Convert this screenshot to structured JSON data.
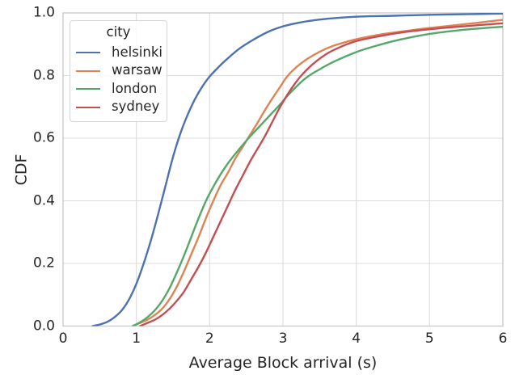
{
  "figure": {
    "background": "#ffffff",
    "text_color": "#262626",
    "grid_color": "#dcdcdc",
    "spine_color": "#c9c9c9"
  },
  "chart_data": {
    "type": "line",
    "variant": "cdf",
    "title": "",
    "xlabel": "Average Block arrival (s)",
    "ylabel": "CDF",
    "xlim": [
      0,
      6
    ],
    "ylim": [
      0.0,
      1.0
    ],
    "x_ticks": [
      {
        "value": 0,
        "label": "0"
      },
      {
        "value": 1,
        "label": "1"
      },
      {
        "value": 2,
        "label": "2"
      },
      {
        "value": 3,
        "label": "3"
      },
      {
        "value": 4,
        "label": "4"
      },
      {
        "value": 5,
        "label": "5"
      },
      {
        "value": 6,
        "label": "6"
      }
    ],
    "y_ticks": [
      {
        "value": 0.0,
        "label": "0.0"
      },
      {
        "value": 0.2,
        "label": "0.2"
      },
      {
        "value": 0.4,
        "label": "0.4"
      },
      {
        "value": 0.6,
        "label": "0.6"
      },
      {
        "value": 0.8,
        "label": "0.8"
      },
      {
        "value": 1.0,
        "label": "1.0"
      }
    ],
    "grid": true,
    "legend": {
      "title": "city",
      "position": "upper left"
    },
    "series": [
      {
        "name": "helsinki",
        "color": "#4C72B0",
        "points": [
          [
            0.4,
            0.0
          ],
          [
            0.5,
            0.005
          ],
          [
            0.6,
            0.013
          ],
          [
            0.7,
            0.028
          ],
          [
            0.8,
            0.05
          ],
          [
            0.9,
            0.085
          ],
          [
            1.0,
            0.135
          ],
          [
            1.1,
            0.2
          ],
          [
            1.2,
            0.275
          ],
          [
            1.3,
            0.36
          ],
          [
            1.4,
            0.45
          ],
          [
            1.5,
            0.54
          ],
          [
            1.6,
            0.615
          ],
          [
            1.7,
            0.675
          ],
          [
            1.8,
            0.725
          ],
          [
            1.9,
            0.765
          ],
          [
            2.0,
            0.797
          ],
          [
            2.1,
            0.822
          ],
          [
            2.2,
            0.845
          ],
          [
            2.4,
            0.885
          ],
          [
            2.6,
            0.915
          ],
          [
            2.8,
            0.94
          ],
          [
            3.0,
            0.957
          ],
          [
            3.2,
            0.968
          ],
          [
            3.5,
            0.979
          ],
          [
            4.0,
            0.988
          ],
          [
            4.5,
            0.991
          ],
          [
            5.0,
            0.994
          ],
          [
            5.5,
            0.996
          ],
          [
            6.0,
            0.998
          ]
        ]
      },
      {
        "name": "warsaw",
        "color": "#DD8452",
        "points": [
          [
            0.95,
            0.0
          ],
          [
            1.05,
            0.01
          ],
          [
            1.15,
            0.02
          ],
          [
            1.25,
            0.035
          ],
          [
            1.35,
            0.055
          ],
          [
            1.45,
            0.085
          ],
          [
            1.55,
            0.125
          ],
          [
            1.65,
            0.175
          ],
          [
            1.75,
            0.23
          ],
          [
            1.85,
            0.285
          ],
          [
            1.95,
            0.345
          ],
          [
            2.05,
            0.4
          ],
          [
            2.15,
            0.45
          ],
          [
            2.25,
            0.49
          ],
          [
            2.35,
            0.535
          ],
          [
            2.45,
            0.572
          ],
          [
            2.55,
            0.61
          ],
          [
            2.65,
            0.648
          ],
          [
            2.75,
            0.688
          ],
          [
            2.85,
            0.725
          ],
          [
            2.95,
            0.76
          ],
          [
            3.05,
            0.795
          ],
          [
            3.15,
            0.82
          ],
          [
            3.3,
            0.848
          ],
          [
            3.5,
            0.876
          ],
          [
            3.7,
            0.896
          ],
          [
            4.0,
            0.916
          ],
          [
            4.3,
            0.93
          ],
          [
            4.6,
            0.94
          ],
          [
            5.0,
            0.952
          ],
          [
            5.4,
            0.962
          ],
          [
            5.7,
            0.97
          ],
          [
            6.0,
            0.978
          ]
        ]
      },
      {
        "name": "london",
        "color": "#55A868",
        "points": [
          [
            0.95,
            0.0
          ],
          [
            1.05,
            0.012
          ],
          [
            1.15,
            0.028
          ],
          [
            1.25,
            0.05
          ],
          [
            1.35,
            0.08
          ],
          [
            1.45,
            0.12
          ],
          [
            1.55,
            0.17
          ],
          [
            1.65,
            0.225
          ],
          [
            1.75,
            0.285
          ],
          [
            1.85,
            0.345
          ],
          [
            1.95,
            0.4
          ],
          [
            2.05,
            0.445
          ],
          [
            2.15,
            0.485
          ],
          [
            2.25,
            0.52
          ],
          [
            2.35,
            0.55
          ],
          [
            2.45,
            0.578
          ],
          [
            2.55,
            0.605
          ],
          [
            2.65,
            0.63
          ],
          [
            2.75,
            0.655
          ],
          [
            2.85,
            0.68
          ],
          [
            2.95,
            0.705
          ],
          [
            3.1,
            0.745
          ],
          [
            3.3,
            0.79
          ],
          [
            3.5,
            0.82
          ],
          [
            3.7,
            0.845
          ],
          [
            4.0,
            0.875
          ],
          [
            4.3,
            0.897
          ],
          [
            4.6,
            0.915
          ],
          [
            5.0,
            0.933
          ],
          [
            5.5,
            0.947
          ],
          [
            6.0,
            0.956
          ]
        ]
      },
      {
        "name": "sydney",
        "color": "#C44E52",
        "points": [
          [
            1.05,
            0.0
          ],
          [
            1.15,
            0.01
          ],
          [
            1.25,
            0.02
          ],
          [
            1.35,
            0.035
          ],
          [
            1.45,
            0.055
          ],
          [
            1.55,
            0.08
          ],
          [
            1.65,
            0.11
          ],
          [
            1.75,
            0.15
          ],
          [
            1.85,
            0.19
          ],
          [
            1.95,
            0.235
          ],
          [
            2.05,
            0.285
          ],
          [
            2.15,
            0.335
          ],
          [
            2.25,
            0.385
          ],
          [
            2.35,
            0.435
          ],
          [
            2.45,
            0.48
          ],
          [
            2.55,
            0.525
          ],
          [
            2.65,
            0.565
          ],
          [
            2.75,
            0.605
          ],
          [
            2.85,
            0.65
          ],
          [
            2.95,
            0.695
          ],
          [
            3.05,
            0.735
          ],
          [
            3.15,
            0.77
          ],
          [
            3.25,
            0.8
          ],
          [
            3.4,
            0.835
          ],
          [
            3.6,
            0.87
          ],
          [
            3.8,
            0.893
          ],
          [
            4.0,
            0.91
          ],
          [
            4.3,
            0.925
          ],
          [
            4.6,
            0.937
          ],
          [
            5.0,
            0.948
          ],
          [
            5.5,
            0.958
          ],
          [
            6.0,
            0.967
          ]
        ]
      }
    ]
  }
}
